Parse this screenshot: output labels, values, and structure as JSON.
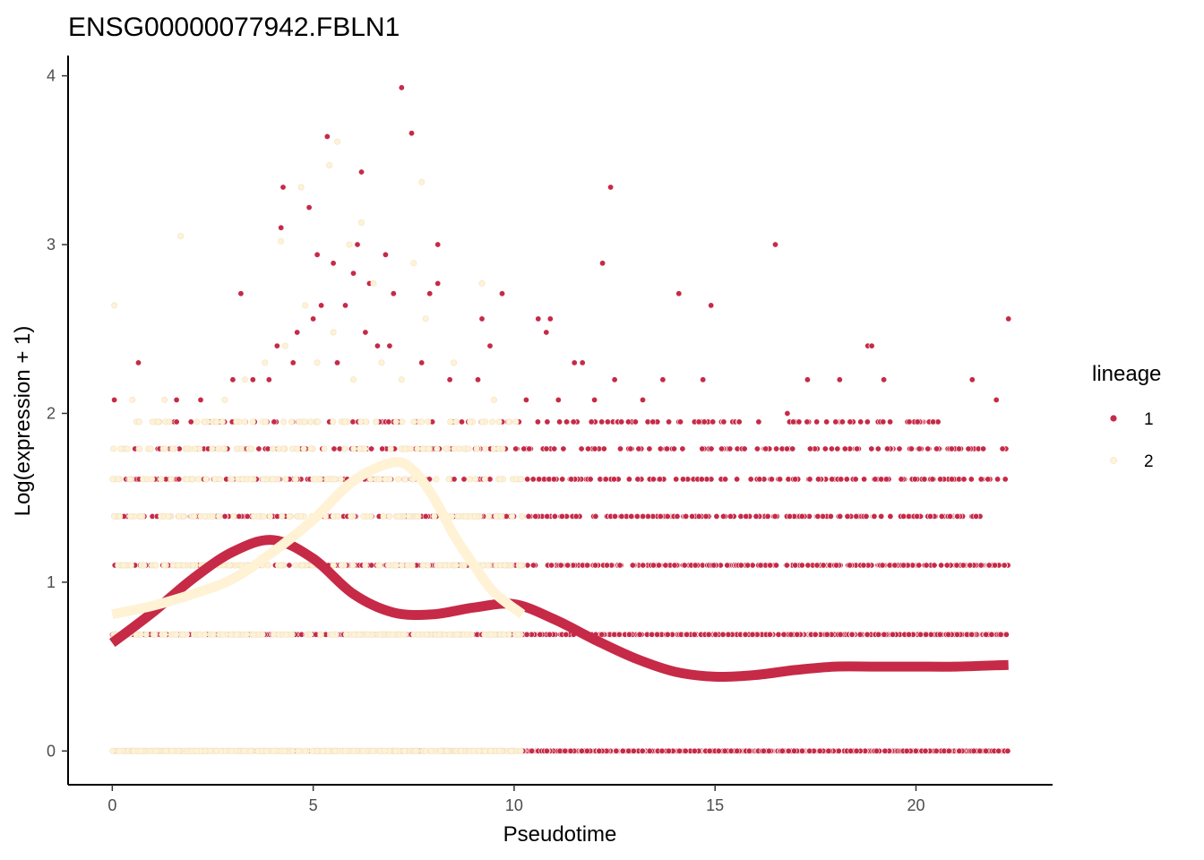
{
  "chart_data": {
    "type": "scatter",
    "title": "ENSG00000077942.FBLN1",
    "xlabel": "Pseudotime",
    "ylabel": "Log(expression + 1)",
    "xlim": [
      -1.1,
      23.4
    ],
    "ylim": [
      -0.2,
      4.12
    ],
    "x_ticks": [
      0,
      5,
      10,
      15,
      20
    ],
    "y_ticks": [
      0,
      1,
      2,
      3,
      4
    ],
    "grid": false,
    "legend": {
      "title": "lineage",
      "position": "right",
      "entries": [
        {
          "label": "1",
          "color": "#c62a47"
        },
        {
          "label": "2",
          "color": "#fff2d5"
        }
      ]
    },
    "series": [
      {
        "name": "1",
        "color": "#c62a47",
        "smooth_curve": [
          [
            0,
            0.64
          ],
          [
            1,
            0.82
          ],
          [
            2,
            1.02
          ],
          [
            3,
            1.18
          ],
          [
            4,
            1.25
          ],
          [
            5,
            1.14
          ],
          [
            6,
            0.93
          ],
          [
            7,
            0.82
          ],
          [
            8,
            0.81
          ],
          [
            9,
            0.85
          ],
          [
            10,
            0.87
          ],
          [
            11,
            0.78
          ],
          [
            12,
            0.66
          ],
          [
            13,
            0.55
          ],
          [
            14,
            0.47
          ],
          [
            15,
            0.44
          ],
          [
            16,
            0.45
          ],
          [
            17,
            0.48
          ],
          [
            18,
            0.5
          ],
          [
            19,
            0.5
          ],
          [
            20,
            0.5
          ],
          [
            21,
            0.5
          ],
          [
            22.3,
            0.51
          ]
        ],
        "bands": [
          {
            "y": 0,
            "x_range": [
              0,
              22.3
            ],
            "n": 1400
          },
          {
            "y": 0.69,
            "x_range": [
              0,
              22.3
            ],
            "n": 700
          },
          {
            "y": 1.1,
            "x_range": [
              0,
              22.3
            ],
            "n": 520
          },
          {
            "y": 1.39,
            "x_range": [
              0,
              21.6
            ],
            "n": 330
          },
          {
            "y": 1.61,
            "x_range": [
              0.3,
              22.3
            ],
            "n": 250
          },
          {
            "y": 1.79,
            "x_range": [
              0.5,
              22.3
            ],
            "n": 200
          },
          {
            "y": 1.95,
            "x_range": [
              1.5,
              20.6
            ],
            "n": 150
          }
        ],
        "points": [
          [
            0.05,
            2.08
          ],
          [
            0.65,
            2.3
          ],
          [
            1.6,
            2.08
          ],
          [
            3.2,
            2.71
          ],
          [
            4.2,
            3.1
          ],
          [
            4.25,
            3.34
          ],
          [
            4.9,
            3.22
          ],
          [
            5.1,
            2.94
          ],
          [
            5.2,
            2.64
          ],
          [
            5.35,
            3.64
          ],
          [
            5.5,
            2.89
          ],
          [
            6.0,
            2.83
          ],
          [
            6.1,
            3.0
          ],
          [
            6.2,
            3.43
          ],
          [
            6.4,
            2.77
          ],
          [
            6.8,
            2.94
          ],
          [
            7.0,
            2.71
          ],
          [
            7.2,
            3.93
          ],
          [
            7.45,
            3.66
          ],
          [
            7.9,
            2.71
          ],
          [
            8.1,
            3.0
          ],
          [
            8.1,
            2.77
          ],
          [
            9.2,
            2.56
          ],
          [
            9.7,
            2.71
          ],
          [
            9.4,
            2.4
          ],
          [
            10.6,
            2.56
          ],
          [
            10.8,
            2.48
          ],
          [
            10.9,
            2.56
          ],
          [
            11.5,
            2.3
          ],
          [
            12.2,
            2.89
          ],
          [
            12.4,
            3.34
          ],
          [
            14.1,
            2.71
          ],
          [
            14.9,
            2.64
          ],
          [
            16.5,
            3.0
          ],
          [
            18.8,
            2.4
          ],
          [
            18.9,
            2.4
          ],
          [
            22.3,
            2.56
          ],
          [
            22.0,
            2.08
          ],
          [
            21.4,
            2.2
          ],
          [
            19.2,
            2.2
          ],
          [
            17.3,
            2.2
          ],
          [
            18.1,
            2.2
          ],
          [
            14.7,
            2.2
          ],
          [
            13.7,
            2.2
          ],
          [
            12.5,
            2.2
          ],
          [
            2.2,
            2.08
          ],
          [
            3.0,
            2.2
          ],
          [
            3.5,
            2.2
          ],
          [
            3.9,
            2.2
          ],
          [
            4.1,
            2.4
          ],
          [
            4.6,
            2.48
          ],
          [
            5.0,
            2.56
          ],
          [
            5.8,
            2.64
          ],
          [
            6.3,
            2.48
          ],
          [
            6.6,
            2.4
          ],
          [
            4.5,
            2.3
          ],
          [
            5.6,
            2.3
          ],
          [
            6.9,
            2.4
          ],
          [
            7.7,
            2.3
          ],
          [
            8.4,
            2.2
          ],
          [
            9.1,
            2.2
          ],
          [
            10.3,
            2.08
          ],
          [
            11.1,
            2.08
          ],
          [
            11.7,
            2.3
          ],
          [
            12.0,
            2.08
          ],
          [
            13.2,
            2.08
          ],
          [
            16.8,
            2.0
          ],
          [
            18.0,
            1.95
          ]
        ]
      },
      {
        "name": "2",
        "color": "#fff2d5",
        "smooth_curve": [
          [
            0,
            0.81
          ],
          [
            1,
            0.86
          ],
          [
            2,
            0.93
          ],
          [
            3,
            1.02
          ],
          [
            4,
            1.18
          ],
          [
            5,
            1.37
          ],
          [
            6,
            1.6
          ],
          [
            7,
            1.71
          ],
          [
            7.5,
            1.66
          ],
          [
            8,
            1.5
          ],
          [
            8.5,
            1.28
          ],
          [
            9,
            1.1
          ],
          [
            9.5,
            0.94
          ],
          [
            10.2,
            0.81
          ]
        ],
        "bands": [
          {
            "y": 0,
            "x_range": [
              0,
              10.2
            ],
            "n": 320
          },
          {
            "y": 0.69,
            "x_range": [
              0,
              10.2
            ],
            "n": 150
          },
          {
            "y": 1.1,
            "x_range": [
              0,
              10.2
            ],
            "n": 120
          },
          {
            "y": 1.39,
            "x_range": [
              0,
              10.2
            ],
            "n": 90
          },
          {
            "y": 1.61,
            "x_range": [
              0,
              10.2
            ],
            "n": 80
          },
          {
            "y": 1.79,
            "x_range": [
              0,
              10.2
            ],
            "n": 70
          },
          {
            "y": 1.95,
            "x_range": [
              0.3,
              10.2
            ],
            "n": 60
          }
        ],
        "points": [
          [
            0.05,
            2.64
          ],
          [
            1.7,
            3.05
          ],
          [
            5.6,
            3.61
          ],
          [
            5.4,
            3.47
          ],
          [
            4.7,
            3.34
          ],
          [
            4.2,
            3.02
          ],
          [
            7.7,
            3.37
          ],
          [
            6.2,
            3.13
          ],
          [
            5.9,
            3.0
          ],
          [
            7.5,
            2.89
          ],
          [
            6.5,
            2.77
          ],
          [
            9.2,
            2.77
          ],
          [
            4.8,
            2.64
          ],
          [
            5.5,
            2.48
          ],
          [
            7.8,
            2.56
          ],
          [
            3.8,
            2.3
          ],
          [
            4.3,
            2.4
          ],
          [
            5.1,
            2.3
          ],
          [
            6.0,
            2.2
          ],
          [
            6.7,
            2.3
          ],
          [
            7.2,
            2.2
          ],
          [
            8.5,
            2.3
          ],
          [
            9.5,
            2.08
          ],
          [
            2.8,
            2.08
          ],
          [
            3.3,
            2.2
          ],
          [
            0.5,
            2.08
          ],
          [
            1.0,
            1.95
          ],
          [
            1.3,
            2.08
          ],
          [
            2.3,
            1.95
          ],
          [
            8.9,
            1.95
          ]
        ]
      }
    ]
  }
}
